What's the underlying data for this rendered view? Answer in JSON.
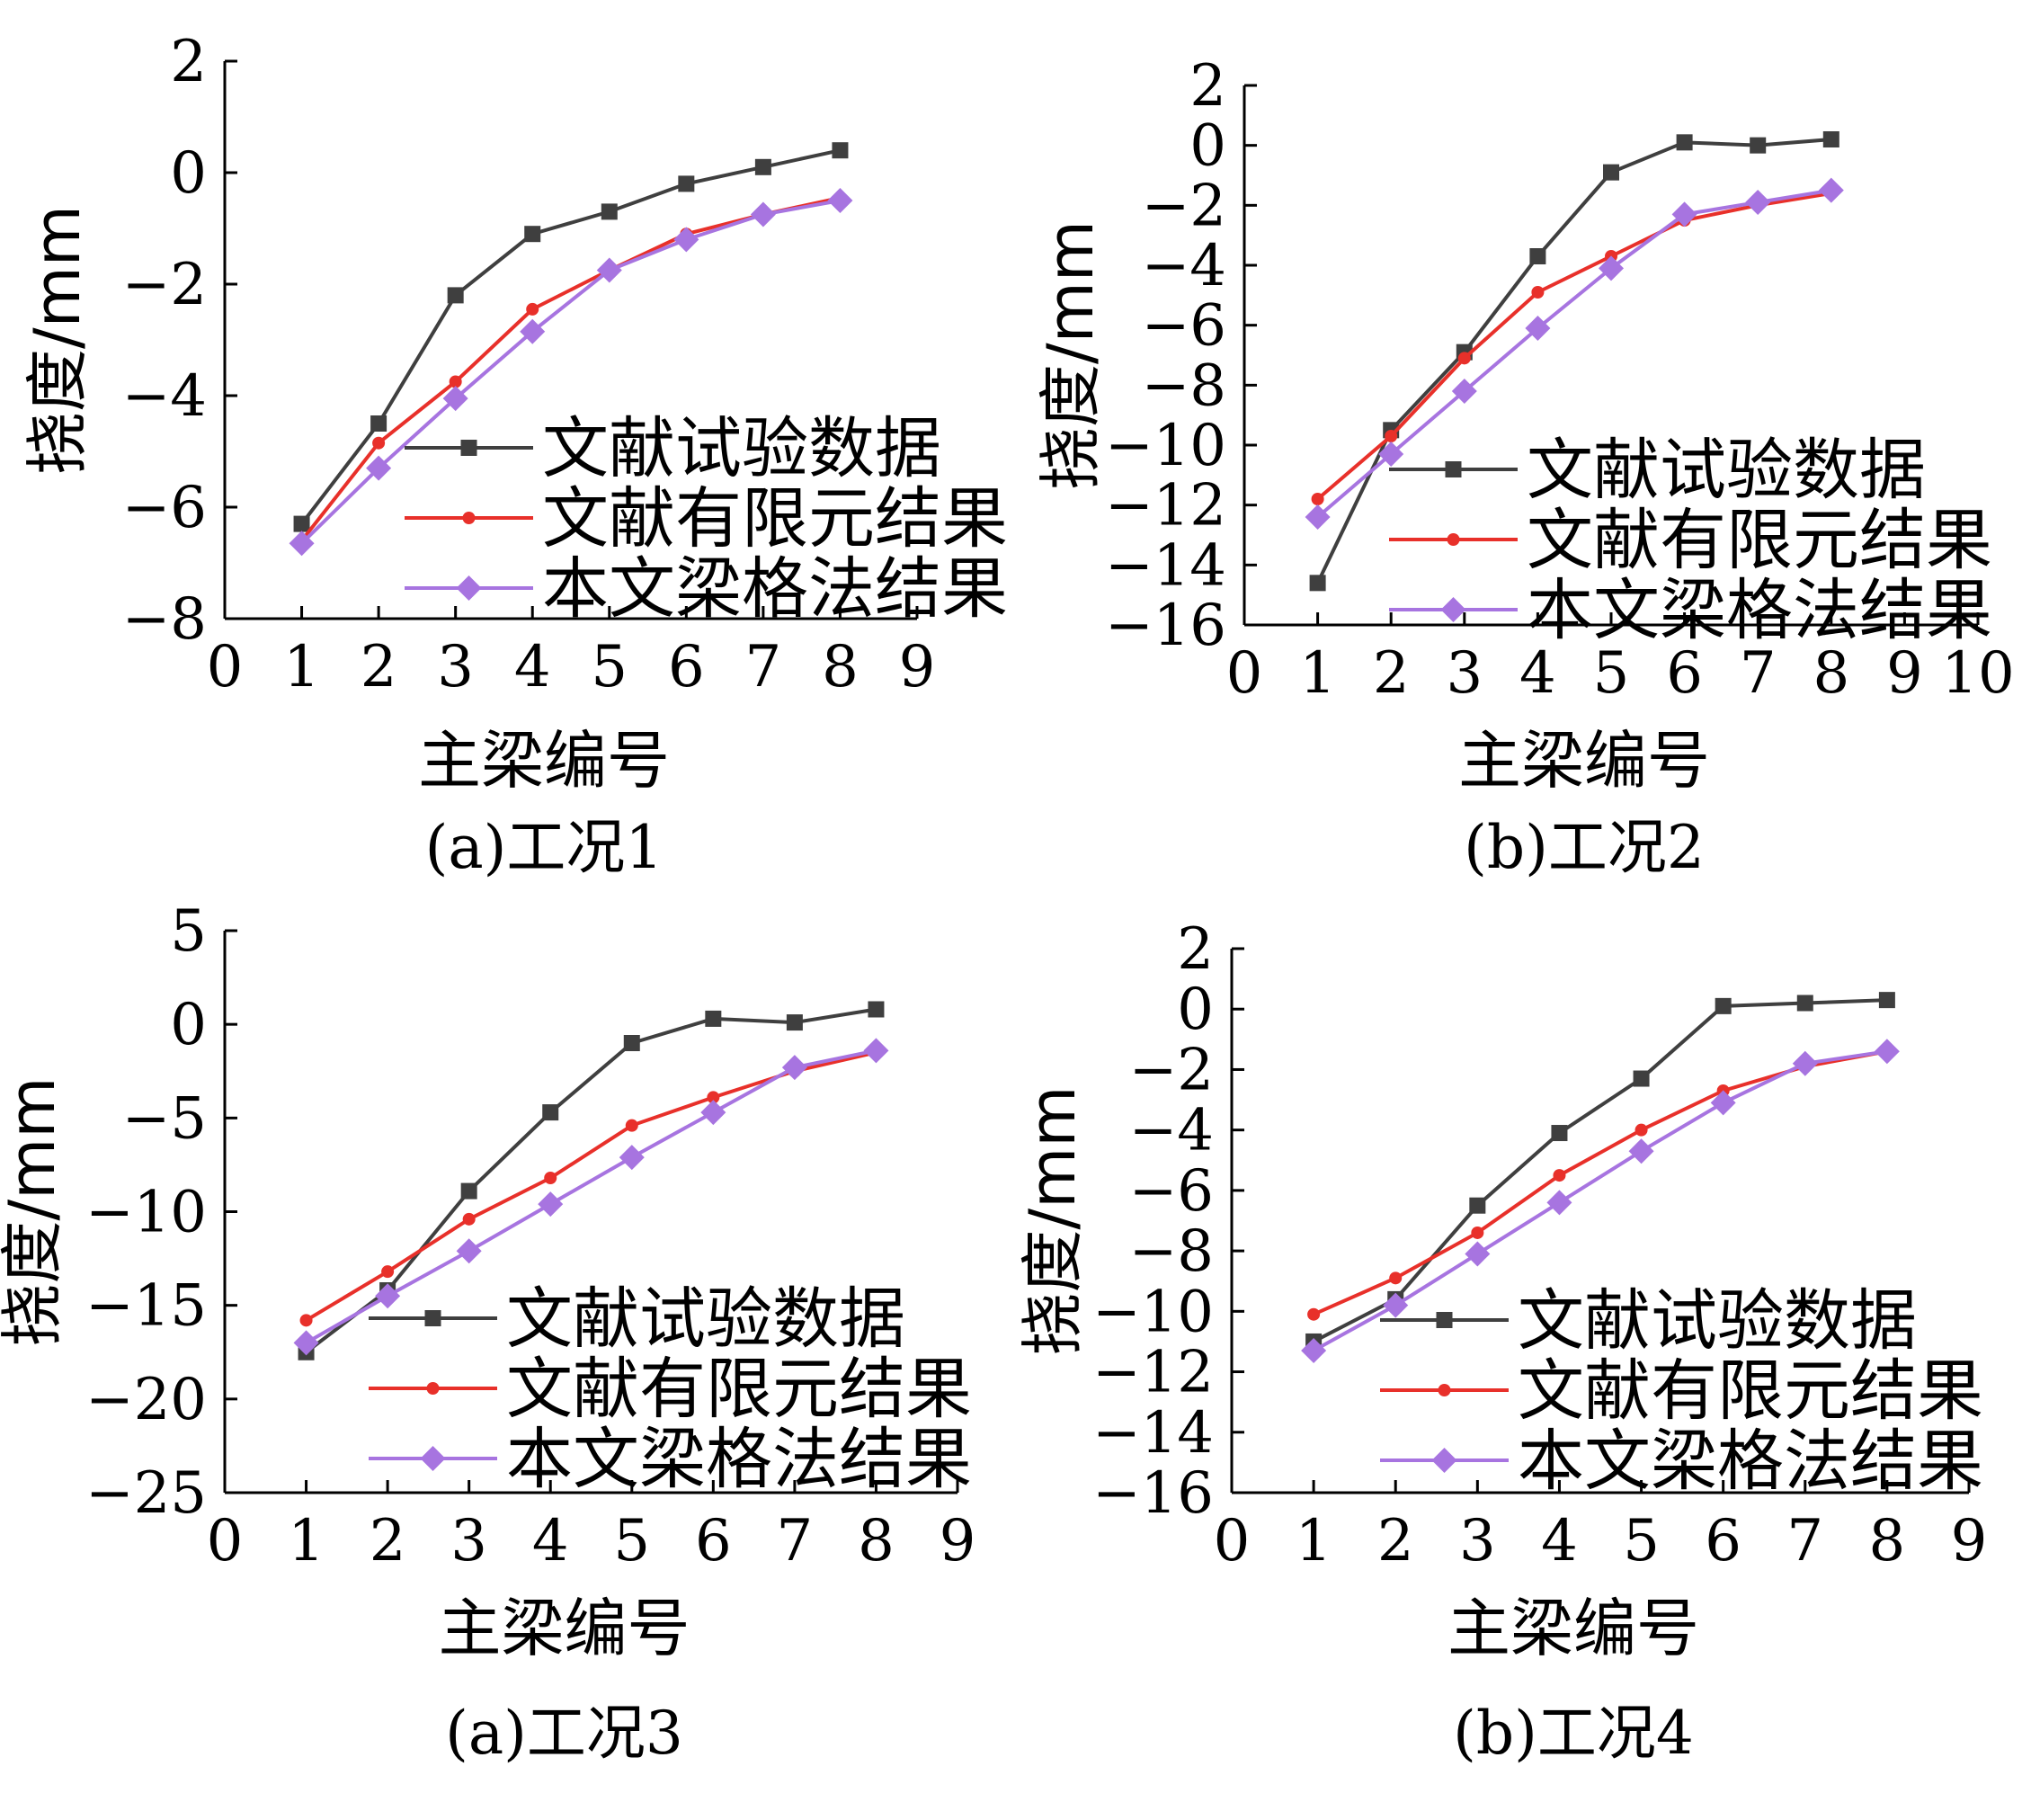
{
  "colors": {
    "test": "#3f3f3f",
    "fem": "#e8302a",
    "grillage": "#a774e0"
  },
  "legend": [
    "文献试验数据",
    "文献有限元结果",
    "本文梁格法结果"
  ],
  "xlabel": "主梁编号",
  "ylabel": "挠度/mm",
  "chart_data": [
    {
      "type": "line",
      "caption": "(a)工况1",
      "xlabel": "主梁编号",
      "ylabel": "挠度/mm",
      "xlim": [
        0,
        9
      ],
      "ylim": [
        -8,
        2
      ],
      "xticks": [
        0,
        1,
        2,
        3,
        4,
        5,
        6,
        7,
        8,
        9
      ],
      "yticks": [
        -8,
        -6,
        -4,
        -2,
        0,
        2
      ],
      "legend_position": "lower-right",
      "x": [
        1,
        2,
        3,
        4,
        5,
        6,
        7,
        8
      ],
      "series": [
        {
          "name": "文献试验数据",
          "marker": "square",
          "values": [
            -6.3,
            -4.5,
            -2.2,
            -1.1,
            -0.7,
            -0.2,
            0.1,
            0.4
          ]
        },
        {
          "name": "文献有限元结果",
          "marker": "dot",
          "values": [
            -6.6,
            -4.85,
            -3.75,
            -2.45,
            -1.75,
            -1.1,
            -0.75,
            -0.45
          ]
        },
        {
          "name": "本文梁格法结果",
          "marker": "diamond",
          "values": [
            -6.65,
            -5.3,
            -4.05,
            -2.85,
            -1.75,
            -1.2,
            -0.75,
            -0.5
          ]
        }
      ]
    },
    {
      "type": "line",
      "caption": "(b)工况2",
      "xlabel": "主梁编号",
      "ylabel": "挠度/mm",
      "xlim": [
        0,
        10
      ],
      "ylim": [
        -16,
        2
      ],
      "xticks": [
        0,
        1,
        2,
        3,
        4,
        5,
        6,
        7,
        8,
        9,
        10
      ],
      "yticks": [
        -16,
        -14,
        -12,
        -10,
        -8,
        -6,
        -4,
        -2,
        0,
        2
      ],
      "legend_position": "lower-right",
      "x": [
        1,
        2,
        3,
        4,
        5,
        6,
        7,
        8
      ],
      "series": [
        {
          "name": "文献试验数据",
          "marker": "square",
          "values": [
            -14.6,
            -9.5,
            -6.9,
            -3.7,
            -0.9,
            0.1,
            0.0,
            0.2
          ]
        },
        {
          "name": "文献有限元结果",
          "marker": "dot",
          "values": [
            -11.8,
            -9.7,
            -7.1,
            -4.9,
            -3.7,
            -2.5,
            -2.0,
            -1.6
          ]
        },
        {
          "name": "本文梁格法结果",
          "marker": "diamond",
          "values": [
            -12.4,
            -10.3,
            -8.2,
            -6.1,
            -4.1,
            -2.3,
            -1.9,
            -1.5
          ]
        }
      ]
    },
    {
      "type": "line",
      "caption": "(a)工况3",
      "xlabel": "主梁编号",
      "ylabel": "挠度/mm",
      "xlim": [
        0,
        9
      ],
      "ylim": [
        -25,
        5
      ],
      "xticks": [
        0,
        1,
        2,
        3,
        4,
        5,
        6,
        7,
        8,
        9
      ],
      "yticks": [
        -25,
        -20,
        -15,
        -10,
        -5,
        0,
        5
      ],
      "legend_position": "lower-right",
      "x": [
        1,
        2,
        3,
        4,
        5,
        6,
        7,
        8
      ],
      "series": [
        {
          "name": "文献试验数据",
          "marker": "square",
          "values": [
            -17.5,
            -14.2,
            -8.9,
            -4.7,
            -1.0,
            0.3,
            0.1,
            0.8
          ]
        },
        {
          "name": "文献有限元结果",
          "marker": "dot",
          "values": [
            -15.8,
            -13.2,
            -10.4,
            -8.2,
            -5.4,
            -3.9,
            -2.5,
            -1.5
          ]
        },
        {
          "name": "本文梁格法结果",
          "marker": "diamond",
          "values": [
            -17.0,
            -14.5,
            -12.1,
            -9.6,
            -7.1,
            -4.7,
            -2.3,
            -1.4
          ]
        }
      ]
    },
    {
      "type": "line",
      "caption": "(b)工况4",
      "xlabel": "主梁编号",
      "ylabel": "挠度/mm",
      "xlim": [
        0,
        9
      ],
      "ylim": [
        -16,
        2
      ],
      "xticks": [
        0,
        1,
        2,
        3,
        4,
        5,
        6,
        7,
        8,
        9
      ],
      "yticks": [
        -16,
        -14,
        -12,
        -10,
        -8,
        -6,
        -4,
        -2,
        0,
        2
      ],
      "legend_position": "lower-right",
      "x": [
        1,
        2,
        3,
        4,
        5,
        6,
        7,
        8
      ],
      "series": [
        {
          "name": "文献试验数据",
          "marker": "square",
          "values": [
            -11.0,
            -9.6,
            -6.5,
            -4.1,
            -2.3,
            0.1,
            0.2,
            0.3
          ]
        },
        {
          "name": "文献有限元结果",
          "marker": "dot",
          "values": [
            -10.1,
            -8.9,
            -7.4,
            -5.5,
            -4.0,
            -2.7,
            -1.9,
            -1.4
          ]
        },
        {
          "name": "本文梁格法结果",
          "marker": "diamond",
          "values": [
            -11.3,
            -9.8,
            -8.1,
            -6.4,
            -4.7,
            -3.1,
            -1.8,
            -1.4
          ]
        }
      ]
    }
  ]
}
